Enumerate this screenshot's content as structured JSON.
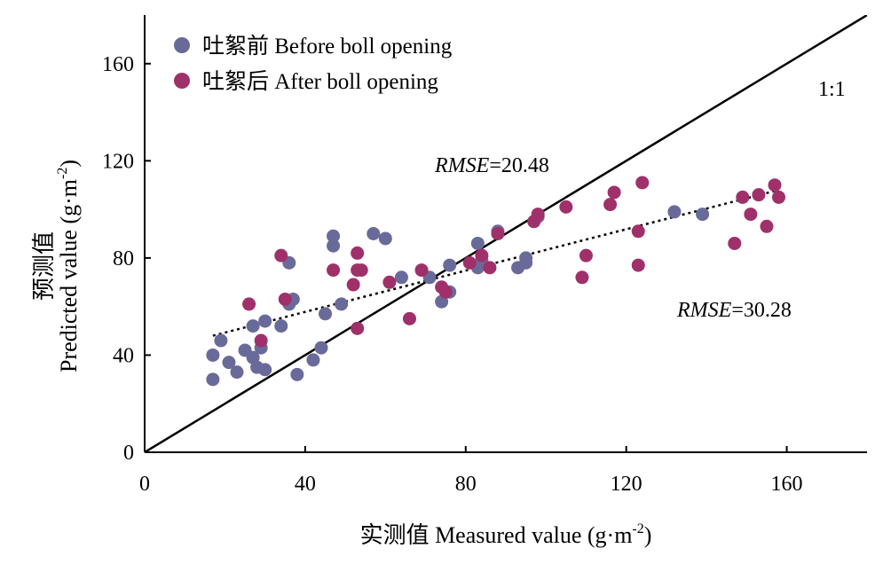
{
  "chart_data": {
    "type": "scatter",
    "xlabel": "实测值 Measured value (g·m-2)",
    "ylabel": "预测值 Predicted value (g·m-2)",
    "x_axis": {
      "prefix": "实测值 Measured value (g·m",
      "sup": "-2",
      "suffix": ")"
    },
    "y_axis": {
      "line1": "预测值",
      "line2_prefix": "Predicted value (g·m",
      "line2_sup": "-2",
      "line2_suffix": ")"
    },
    "xlim": [
      0,
      180
    ],
    "ylim": [
      0,
      180
    ],
    "xticks": [
      0,
      40,
      80,
      120,
      160
    ],
    "yticks": [
      0,
      40,
      80,
      120,
      160
    ],
    "legend_position": "top-left",
    "reference_line": {
      "label": "1:1",
      "slope": 1,
      "intercept": 0
    },
    "series": [
      {
        "name": "吐絮前 Before boll opening",
        "color": "#6A6A9A",
        "rmse": {
          "prefix": "RMSE",
          "value": "=20.48",
          "color": "#3B3B9A"
        },
        "points": [
          [
            17,
            30
          ],
          [
            17,
            40
          ],
          [
            19,
            46
          ],
          [
            21,
            37
          ],
          [
            23,
            33
          ],
          [
            25,
            42
          ],
          [
            27,
            52
          ],
          [
            27,
            39
          ],
          [
            28,
            35
          ],
          [
            29,
            43
          ],
          [
            30,
            54
          ],
          [
            30,
            34
          ],
          [
            34,
            52
          ],
          [
            36,
            78
          ],
          [
            37,
            63
          ],
          [
            36,
            61
          ],
          [
            38,
            32
          ],
          [
            42,
            38
          ],
          [
            44,
            43
          ],
          [
            45,
            57
          ],
          [
            47,
            85
          ],
          [
            47,
            89
          ],
          [
            49,
            61
          ],
          [
            57,
            90
          ],
          [
            60,
            88
          ],
          [
            64,
            72
          ],
          [
            71,
            72
          ],
          [
            74,
            62
          ],
          [
            76,
            66
          ],
          [
            76,
            77
          ],
          [
            83,
            86
          ],
          [
            83,
            76
          ],
          [
            84,
            79
          ],
          [
            88,
            91
          ],
          [
            93,
            76
          ],
          [
            95,
            78
          ],
          [
            95,
            80
          ],
          [
            98,
            97
          ],
          [
            132,
            99
          ],
          [
            139,
            98
          ]
        ]
      },
      {
        "name": "吐絮后 After boll opening",
        "color": "#A0306A",
        "rmse": {
          "prefix": "RMSE",
          "value": "=30.28",
          "color": "#E8191E"
        },
        "points": [
          [
            26,
            61
          ],
          [
            29,
            46
          ],
          [
            34,
            81
          ],
          [
            35,
            63
          ],
          [
            47,
            75
          ],
          [
            52,
            69
          ],
          [
            53,
            82
          ],
          [
            53,
            75
          ],
          [
            53,
            51
          ],
          [
            54,
            75
          ],
          [
            61,
            70
          ],
          [
            66,
            55
          ],
          [
            69,
            75
          ],
          [
            74,
            68
          ],
          [
            75,
            66
          ],
          [
            81,
            78
          ],
          [
            84,
            81
          ],
          [
            86,
            76
          ],
          [
            88,
            90
          ],
          [
            97,
            95
          ],
          [
            98,
            98
          ],
          [
            105,
            101
          ],
          [
            109,
            72
          ],
          [
            110,
            81
          ],
          [
            116,
            102
          ],
          [
            117,
            107
          ],
          [
            123,
            91
          ],
          [
            123,
            77
          ],
          [
            124,
            111
          ],
          [
            147,
            86
          ],
          [
            149,
            105
          ],
          [
            151,
            98
          ],
          [
            153,
            106
          ],
          [
            155,
            93
          ],
          [
            157,
            110
          ],
          [
            158,
            105
          ]
        ]
      }
    ],
    "trend_line": {
      "style": "dotted",
      "x": [
        17,
        158
      ],
      "y": [
        48,
        108
      ]
    }
  }
}
